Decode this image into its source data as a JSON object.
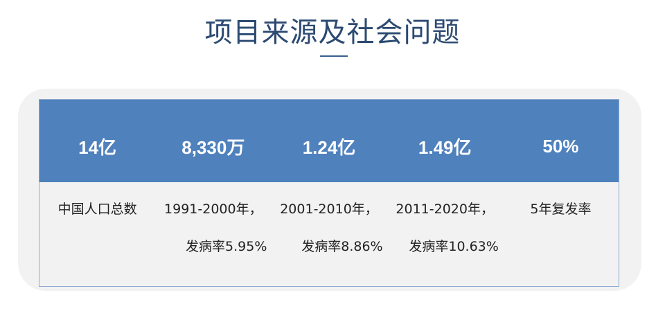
{
  "title": "项目来源及社会问题",
  "colors": {
    "header_bg": "#4f81bd",
    "title": "#2c4a72",
    "panel_bg": "#f2f2f2"
  },
  "table": {
    "headers": [
      "14亿",
      "8,330万",
      "1.24亿",
      "1.49亿",
      "50%"
    ],
    "cells": [
      {
        "line1": "中国人口总数",
        "line2": ""
      },
      {
        "line1": "1991-2000年，",
        "line2": "发病率5.95%"
      },
      {
        "line1": "2001-2010年，",
        "line2": "发病率8.86%"
      },
      {
        "line1": "2011-2020年，",
        "line2": "发病率10.63%"
      },
      {
        "line1": "5年复发率",
        "line2": ""
      }
    ]
  }
}
